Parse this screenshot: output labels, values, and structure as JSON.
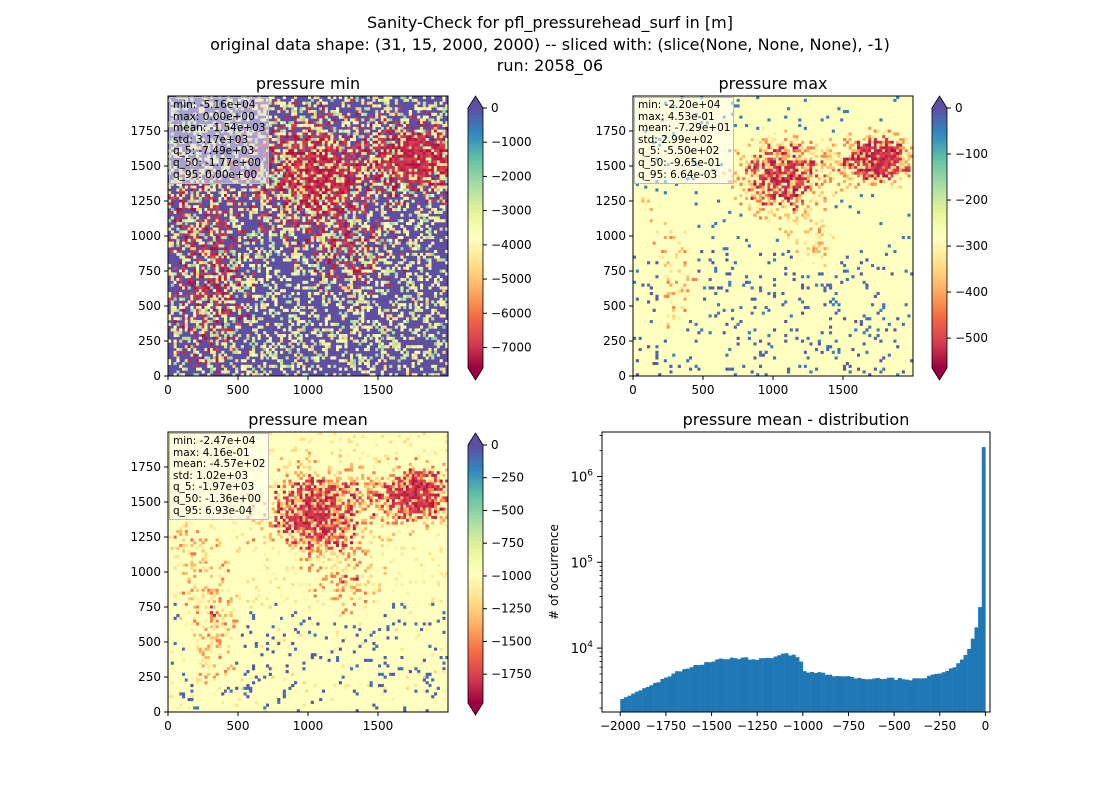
{
  "title": {
    "line1": "Sanity-Check for pfl_pressurehead_surf in [m]",
    "line2": "original data shape: (31, 15, 2000, 2000) -- sliced with: (slice(None, None, None), -1)",
    "line3": "run: 2058_06"
  },
  "colors": {
    "spectral_stops": [
      "#9e0142",
      "#d53e4f",
      "#f46d43",
      "#fdae61",
      "#fee08b",
      "#ffffbf",
      "#e6f598",
      "#abdda4",
      "#66c2a5",
      "#3288bd",
      "#5e4fa2"
    ],
    "hist_bar": "#1f77b4"
  },
  "chart_data": [
    {
      "type": "heatmap",
      "title": "pressure min",
      "x_ticks": [
        "0",
        "500",
        "1000",
        "1500"
      ],
      "y_ticks": [
        "0",
        "250",
        "500",
        "750",
        "1000",
        "1250",
        "1500",
        "1750"
      ],
      "xlim": [
        0,
        2000
      ],
      "ylim": [
        0,
        2000
      ],
      "colorbar": {
        "vmin": -7600,
        "vmax": 0,
        "extend": "both",
        "ticks": [
          "0",
          "−1000",
          "−2000",
          "−3000",
          "−4000",
          "−5000",
          "−6000",
          "−7000"
        ]
      },
      "stats": [
        "min: -5.16e+04",
        "max: 0.00e+00",
        "mean: -1.54e+03",
        "std: 3.17e+03",
        "q_5: -7.49e+03",
        "q_50: -1.77e+00",
        "q_95: 0.00e+00"
      ]
    },
    {
      "type": "heatmap",
      "title": "pressure max",
      "x_ticks": [
        "0",
        "500",
        "1000",
        "1500"
      ],
      "y_ticks": [
        "0",
        "250",
        "500",
        "750",
        "1000",
        "1250",
        "1500",
        "1750"
      ],
      "xlim": [
        0,
        2000
      ],
      "ylim": [
        0,
        2000
      ],
      "colorbar": {
        "vmin": -565,
        "vmax": 0,
        "extend": "both",
        "ticks": [
          "0",
          "−100",
          "−200",
          "−300",
          "−400",
          "−500"
        ]
      },
      "stats": [
        "min: -2.20e+04",
        "max: 4.53e-01",
        "mean: -7.29e+01",
        "std: 2.99e+02",
        "q_5: -5.50e+02",
        "q_50: -9.65e-01",
        "q_95: 6.64e-03"
      ]
    },
    {
      "type": "heatmap",
      "title": "pressure mean",
      "x_ticks": [
        "0",
        "500",
        "1000",
        "1500"
      ],
      "y_ticks": [
        "0",
        "250",
        "500",
        "750",
        "1000",
        "1250",
        "1500",
        "1750"
      ],
      "xlim": [
        0,
        2000
      ],
      "ylim": [
        0,
        2000
      ],
      "colorbar": {
        "vmin": -1970,
        "vmax": 0,
        "extend": "both",
        "ticks": [
          "0",
          "−250",
          "−500",
          "−750",
          "−1000",
          "−1250",
          "−1500",
          "−1750"
        ]
      },
      "stats": [
        "min: -2.47e+04",
        "max: 4.16e-01",
        "mean: -4.57e+02",
        "std: 1.02e+03",
        "q_5: -1.97e+03",
        "q_50: -1.36e+00",
        "q_95: 6.93e-04"
      ]
    },
    {
      "type": "bar",
      "title": "pressure mean - distribution",
      "ylabel": "# of occurrence",
      "xlim": [
        -2100,
        25
      ],
      "ylog_range": [
        1800,
        3300000
      ],
      "x_ticks": [
        "−2000",
        "−1750",
        "−1500",
        "−1250",
        "−1000",
        "−750",
        "−500",
        "−250",
        "0"
      ],
      "y_ticks": [
        "10^4",
        "10^5",
        "10^6"
      ],
      "bin_width": 20,
      "profile": [
        [
          -2000,
          2500
        ],
        [
          -1900,
          3200
        ],
        [
          -1800,
          4000
        ],
        [
          -1700,
          5200
        ],
        [
          -1600,
          6200
        ],
        [
          -1500,
          7000
        ],
        [
          -1400,
          7700
        ],
        [
          -1300,
          7600
        ],
        [
          -1250,
          7300
        ],
        [
          -1150,
          8000
        ],
        [
          -1100,
          8600
        ],
        [
          -1040,
          8300
        ],
        [
          -1010,
          7000
        ],
        [
          -990,
          5300
        ],
        [
          -900,
          5100
        ],
        [
          -800,
          4700
        ],
        [
          -700,
          4500
        ],
        [
          -600,
          4400
        ],
        [
          -500,
          4400
        ],
        [
          -400,
          4300
        ],
        [
          -300,
          4700
        ],
        [
          -200,
          5500
        ],
        [
          -150,
          6500
        ],
        [
          -100,
          9000
        ],
        [
          -60,
          14000
        ],
        [
          -40,
          22000
        ],
        [
          -20,
          40000
        ],
        [
          -10,
          60000
        ],
        [
          0,
          2200000
        ]
      ]
    }
  ]
}
